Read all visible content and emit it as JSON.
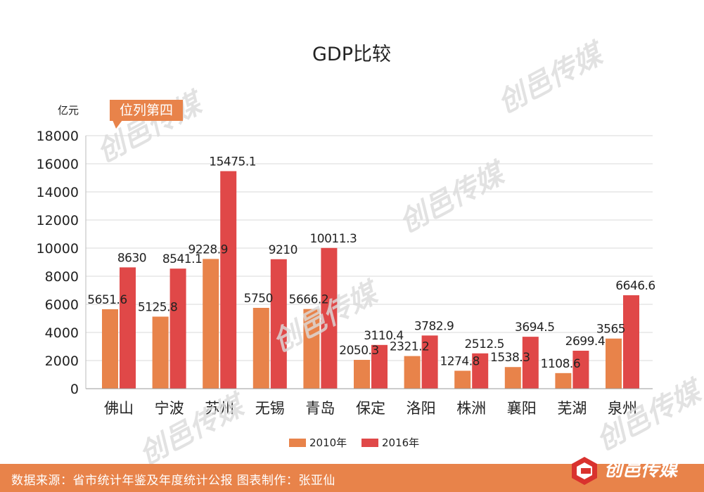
{
  "chart_data": {
    "type": "bar",
    "title": "GDP比较",
    "ylabel": "亿元",
    "xlabel": "",
    "ylim": [
      0,
      18000
    ],
    "yticks": [
      0,
      2000,
      4000,
      6000,
      8000,
      10000,
      12000,
      14000,
      16000,
      18000
    ],
    "categories": [
      "佛山",
      "宁波",
      "苏州",
      "无锡",
      "青岛",
      "保定",
      "洛阳",
      "株洲",
      "襄阳",
      "芜湖",
      "泉州"
    ],
    "series": [
      {
        "name": "2010年",
        "color": "#e8834a",
        "values": [
          5651.6,
          5125.8,
          9228.9,
          5750,
          5666.2,
          2050.3,
          2321.2,
          1274.8,
          1538.3,
          1108.6,
          3565
        ],
        "labels": [
          "5651.6",
          "5125.8",
          "9228.9",
          "5750",
          "5666.2",
          "2050.3",
          "2321.2",
          "1274.8",
          "1538.3",
          "1108.6",
          "3565"
        ]
      },
      {
        "name": "2016年",
        "color": "#e04848",
        "values": [
          8630,
          8541.1,
          15475.1,
          9210,
          10011.3,
          3110.4,
          3782.9,
          2512.5,
          3694.5,
          2699.4,
          6646.6
        ],
        "labels": [
          "8630",
          "8541.1",
          "15475.1",
          "9210",
          "10011.3",
          "3110.4",
          "3782.9",
          "2512.5",
          "3694.5",
          "2699.4",
          "6646.6"
        ]
      }
    ],
    "annotation": "位列第四",
    "grid": true,
    "legend": "bottom-center"
  },
  "footer": {
    "source": "数据来源：省市统计年鉴及年度统计公报  图表制作：张亚仙",
    "brand": "创邑传媒"
  },
  "watermark": "创邑传媒"
}
